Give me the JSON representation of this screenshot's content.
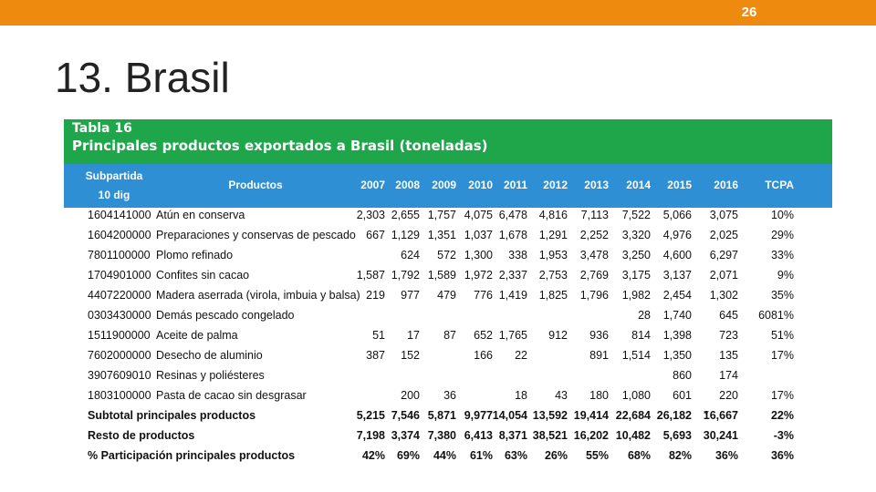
{
  "header": {
    "page_number": "26"
  },
  "title": "13. Brasil",
  "table": {
    "caption_line1": "Tabla 16",
    "caption_line2": "Principales productos exportados a Brasil (toneladas)",
    "columns": {
      "subpartida_line1": "Subpartida",
      "subpartida_line2": "10 dig",
      "productos": "Productos",
      "years": [
        "2007",
        "2008",
        "2009",
        "2010",
        "2011",
        "2012",
        "2013",
        "2014",
        "2015",
        "2016"
      ],
      "tcpa": "TCPA"
    },
    "rows": [
      {
        "code": "1604141000",
        "product": "Atún en conserva",
        "values": [
          "2,303",
          "2,655",
          "1,757",
          "4,075",
          "6,478",
          "4,816",
          "7,113",
          "7,522",
          "5,066",
          "3,075"
        ],
        "tcpa": "10%"
      },
      {
        "code": "1604200000",
        "product": "Preparaciones y conservas de pescado",
        "values": [
          "667",
          "1,129",
          "1,351",
          "1,037",
          "1,678",
          "1,291",
          "2,252",
          "3,320",
          "4,976",
          "2,025"
        ],
        "tcpa": "29%"
      },
      {
        "code": "7801100000",
        "product": "Plomo refinado",
        "values": [
          "",
          "624",
          "572",
          "1,300",
          "338",
          "1,953",
          "3,478",
          "3,250",
          "4,600",
          "6,297"
        ],
        "tcpa": "33%"
      },
      {
        "code": "1704901000",
        "product": "Confites sin cacao",
        "values": [
          "1,587",
          "1,792",
          "1,589",
          "1,972",
          "2,337",
          "2,753",
          "2,769",
          "3,175",
          "3,137",
          "2,071"
        ],
        "tcpa": "9%"
      },
      {
        "code": "4407220000",
        "product": "Madera aserrada (virola, imbuia y balsa)",
        "values": [
          "219",
          "977",
          "479",
          "776",
          "1,419",
          "1,825",
          "1,796",
          "1,982",
          "2,454",
          "1,302"
        ],
        "tcpa": "35%"
      },
      {
        "code": "0303430000",
        "product": "Demás pescado congelado",
        "values": [
          "",
          "",
          "",
          "",
          "",
          "",
          "",
          "28",
          "1,740",
          "645"
        ],
        "tcpa": "6081%"
      },
      {
        "code": "1511900000",
        "product": "Aceite de palma",
        "values": [
          "51",
          "17",
          "87",
          "652",
          "1,765",
          "912",
          "936",
          "814",
          "1,398",
          "723"
        ],
        "tcpa": "51%"
      },
      {
        "code": "7602000000",
        "product": "Desecho de aluminio",
        "values": [
          "387",
          "152",
          "",
          "166",
          "22",
          "",
          "891",
          "1,514",
          "1,350",
          "135"
        ],
        "tcpa": "17%"
      },
      {
        "code": "3907609010",
        "product": "Resinas y poliésteres",
        "values": [
          "",
          "",
          "",
          "",
          "",
          "",
          "",
          "",
          "860",
          "174"
        ],
        "tcpa": ""
      },
      {
        "code": "1803100000",
        "product": "Pasta de cacao sin desgrasar",
        "values": [
          "",
          "200",
          "36",
          "",
          "18",
          "43",
          "180",
          "1,080",
          "601",
          "220"
        ],
        "tcpa": "17%"
      }
    ],
    "summary": [
      {
        "label": "Subtotal principales productos",
        "values": [
          "5,215",
          "7,546",
          "5,871",
          "9,977",
          "14,054",
          "13,592",
          "19,414",
          "22,684",
          "26,182",
          "16,667"
        ],
        "tcpa": "22%"
      },
      {
        "label": "Resto de productos",
        "values": [
          "7,198",
          "3,374",
          "7,380",
          "6,413",
          "8,371",
          "38,521",
          "16,202",
          "10,482",
          "5,693",
          "30,241"
        ],
        "tcpa": "-3%"
      },
      {
        "label": "% Participación principales productos",
        "values": [
          "42%",
          "69%",
          "44%",
          "61%",
          "63%",
          "26%",
          "55%",
          "68%",
          "82%",
          "36%"
        ],
        "tcpa": "36%"
      }
    ]
  }
}
